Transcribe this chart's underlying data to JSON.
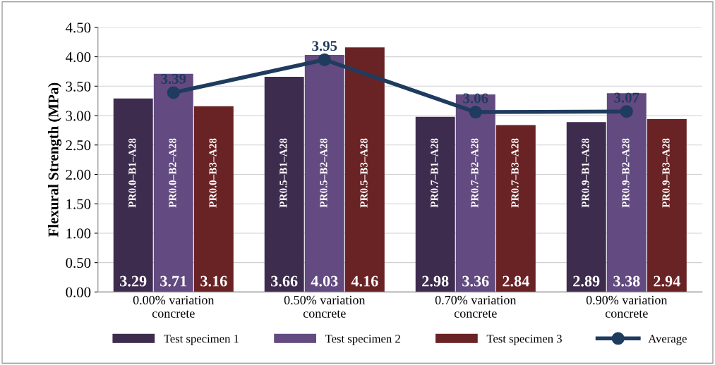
{
  "chart_data": {
    "type": "bar",
    "ylabel": "Flexural Strength (MPa)",
    "categories": [
      "0.00% variation\nconcrete",
      "0.50% variation\nconcrete",
      "0.70% variation\nconcrete",
      "0.90% variation\nconcrete"
    ],
    "series": [
      {
        "name": "Test specimen 1",
        "color": "#3e2c4e",
        "values": [
          3.29,
          3.66,
          2.98,
          2.89
        ]
      },
      {
        "name": "Test specimen 2",
        "color": "#634a80",
        "values": [
          3.71,
          4.03,
          3.36,
          3.38
        ]
      },
      {
        "name": "Test specimen 3",
        "color": "#6a2325",
        "values": [
          3.16,
          4.16,
          2.84,
          2.94
        ]
      },
      {
        "name": "Average",
        "type": "line",
        "color": "#1f3b5e",
        "marker": "circle",
        "line_style": "solid",
        "values": [
          3.39,
          3.95,
          3.06,
          3.07
        ]
      }
    ],
    "ylim": [
      0,
      4.5
    ],
    "yticks": [
      {
        "value": 0,
        "label": "0.00"
      },
      {
        "value": 0.5,
        "label": "0.50"
      },
      {
        "value": 1,
        "label": "1.00"
      },
      {
        "value": 1.5,
        "label": "1.50"
      },
      {
        "value": 2,
        "label": "2.00"
      },
      {
        "value": 2.5,
        "label": "2.50"
      },
      {
        "value": 3,
        "label": "3.00"
      },
      {
        "value": 3.5,
        "label": "3.50"
      },
      {
        "value": 4,
        "label": "4.00"
      },
      {
        "value": 4.5,
        "label": "4.50"
      }
    ],
    "grid": "y",
    "legend": "bottom",
    "data_labels": true,
    "annotations": [
      "PR0.0–B1–A28",
      "PR0.0–B2–A28",
      "PR0.0–B3–A28",
      "PR0.5–B1–A28",
      "PR0.5–B2–A28",
      "PR0.5–B3–A28",
      "PR0.7–B1–A28",
      "PR0.7–B2–A28",
      "PR0.7–B3–A28",
      "PR0.9–B1–A28",
      "PR0.9–B2–A28",
      "PR0.9–B3–A28"
    ]
  }
}
